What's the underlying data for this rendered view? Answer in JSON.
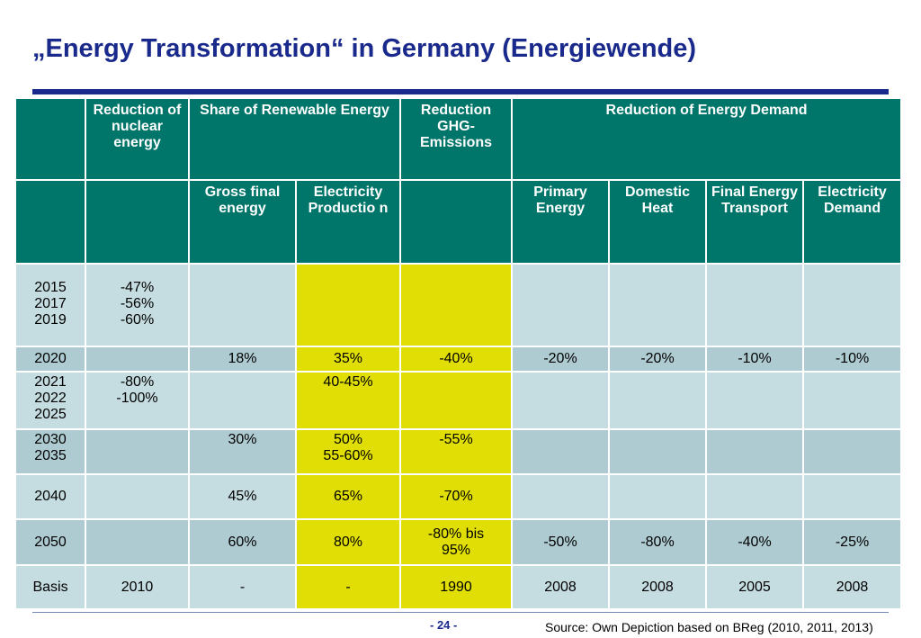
{
  "title": "„Energy Transformation“ in Germany (Energiewende)",
  "table": {
    "header1": {
      "c0": "",
      "nuclear": "Reduction of nuclear energy",
      "renewable": "Share of Renewable Energy",
      "ghg": "Reduction GHG-Emissions",
      "demand": "Reduction of Energy Demand"
    },
    "header2": {
      "c0": "",
      "c1": "",
      "gross": "Gross final energy",
      "electricity_prod": "Electricity Productio n",
      "c4": "",
      "primary": "Primary Energy",
      "domestic": "Domestic Heat",
      "transport": "Final Energy Transport",
      "elec_demand": "Electricity Demand"
    },
    "rows": [
      {
        "year_a": "2015",
        "year_b": "2017",
        "year_c": "2019",
        "nuc_a": "-47%",
        "nuc_b": "-56%",
        "nuc_c": "-60%"
      },
      {
        "year": "2020",
        "nuclear": "",
        "gross": "18%",
        "elec": "35%",
        "ghg": "-40%",
        "primary": "-20%",
        "domestic": "-20%",
        "transport": "-10%",
        "demand": "-10%"
      },
      {
        "year_a": "2021",
        "year_b": "2022",
        "year_c": "2025",
        "nuc_a": "-80%",
        "nuc_b": "-100%",
        "elec": "40-45%"
      },
      {
        "year_a": "2030",
        "year_b": "2035",
        "gross": "30%",
        "elec_a": "50%",
        "elec_b": "55-60%",
        "ghg": "-55%"
      },
      {
        "year": "2040",
        "gross": "45%",
        "elec": "65%",
        "ghg": "-70%"
      },
      {
        "year": "2050",
        "gross": "60%",
        "elec": "80%",
        "ghg": "-80% bis 95%",
        "primary": "-50%",
        "domestic": "-80%",
        "transport": "-40%",
        "demand": "-25%"
      },
      {
        "year": "Basis",
        "nuclear": "2010",
        "gross": "-",
        "elec": "-",
        "ghg": "1990",
        "primary": "2008",
        "domestic": "2008",
        "transport": "2005",
        "demand": "2008"
      }
    ]
  },
  "footer": {
    "page": "- 24 -",
    "source": "Source: Own Depiction based on BReg (2010, 2011, 2013)"
  }
}
